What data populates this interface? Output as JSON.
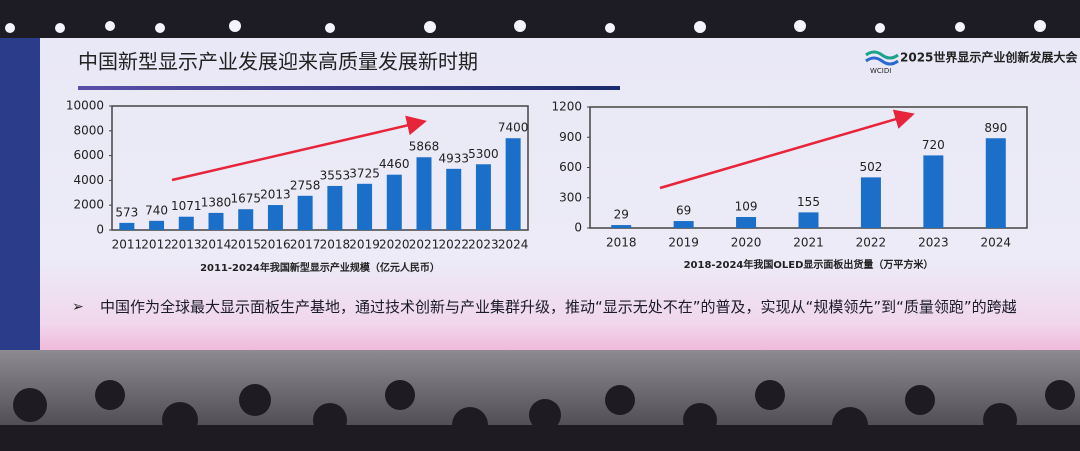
{
  "slide": {
    "title": "中国新型显示产业发展迎来高质量发展新时期",
    "logo": {
      "text": "2025世界显示产业创新发展大会",
      "abbr": "WCIDI"
    },
    "bullet": "中国作为全球最大显示面板生产基地，通过技术创新与产业集群升级，推动“显示无处不在”的普及，实现从“规模领先”到“质量领跑”的跨越"
  },
  "chart_data": [
    {
      "type": "bar",
      "caption": "2011-2024年我国新型显示产业规模（亿元人民币）",
      "categories": [
        "2011",
        "2012",
        "2013",
        "2014",
        "2015",
        "2016",
        "2017",
        "2018",
        "2019",
        "2020",
        "2021",
        "2022",
        "2023",
        "2024"
      ],
      "values": [
        573,
        740,
        1071,
        1380,
        1675,
        2013,
        2758,
        3553,
        3725,
        4460,
        5868,
        4933,
        5300,
        7400
      ],
      "color": "#1b6fc8",
      "ylim": [
        0,
        10000
      ],
      "yticks": [
        0,
        2000,
        4000,
        6000,
        8000,
        10000
      ]
    },
    {
      "type": "bar",
      "caption": "2018-2024年我国OLED显示面板出货量（万平方米）",
      "categories": [
        "2018",
        "2019",
        "2020",
        "2021",
        "2022",
        "2023",
        "2024"
      ],
      "values": [
        29,
        69,
        109,
        155,
        502,
        720,
        890
      ],
      "color": "#1b6fc8",
      "ylim": [
        0,
        1200
      ],
      "yticks": [
        0,
        300,
        600,
        900,
        1200
      ]
    }
  ]
}
